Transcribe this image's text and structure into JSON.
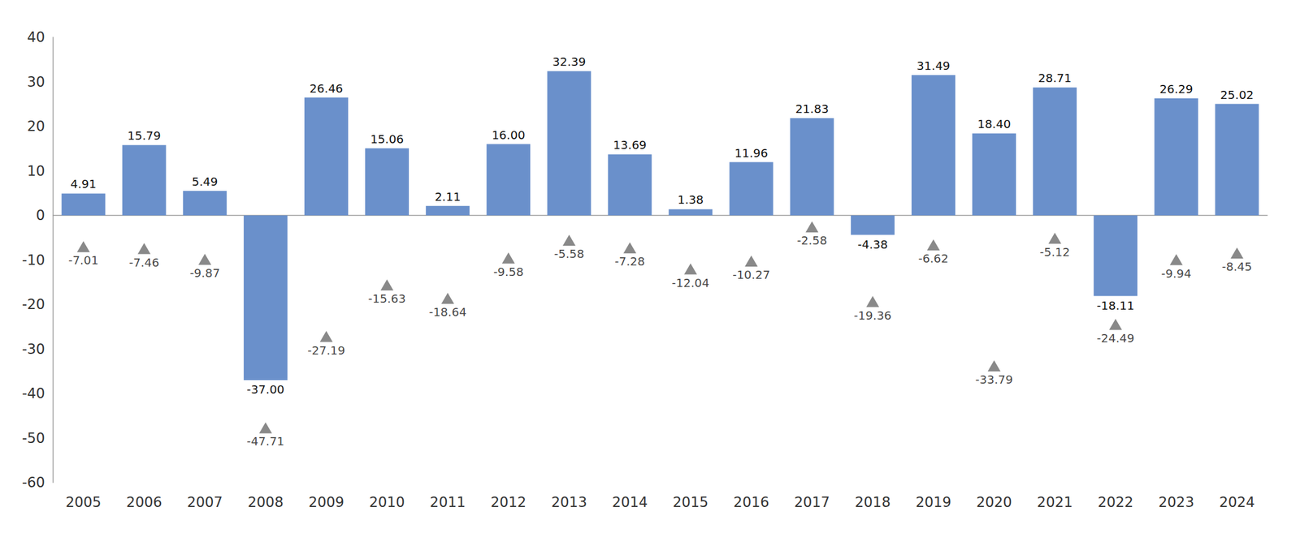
{
  "chart_data": {
    "type": "bar",
    "categories": [
      "2005",
      "2006",
      "2007",
      "2008",
      "2009",
      "2010",
      "2011",
      "2012",
      "2013",
      "2014",
      "2015",
      "2016",
      "2017",
      "2018",
      "2019",
      "2020",
      "2021",
      "2022",
      "2023",
      "2024"
    ],
    "series": [
      {
        "type": "bar",
        "color": "#6a90cb",
        "values": [
          4.91,
          15.79,
          5.49,
          -37.0,
          26.46,
          15.06,
          2.11,
          16.0,
          32.39,
          13.69,
          1.38,
          11.96,
          21.83,
          -4.38,
          31.49,
          18.4,
          28.71,
          -18.11,
          26.29,
          25.02
        ],
        "value_labels": [
          "4.91",
          "15.79",
          "5.49",
          "-37.00",
          "26.46",
          "15.06",
          "2.11",
          "16.00",
          "32.39",
          "13.69",
          "1.38",
          "11.96",
          "21.83",
          "-4.38",
          "31.49",
          "18.40",
          "28.71",
          "-18.11",
          "26.29",
          "25.02"
        ]
      },
      {
        "type": "scatter",
        "marker": "triangle",
        "color": "#6b6b6b",
        "values": [
          -7.01,
          -7.46,
          -9.87,
          -47.71,
          -27.19,
          -15.63,
          -18.64,
          -9.58,
          -5.58,
          -7.28,
          -12.04,
          -10.27,
          -2.58,
          -19.36,
          -6.62,
          -33.79,
          -5.12,
          -24.49,
          -9.94,
          -8.45
        ]
      }
    ],
    "ylim": [
      -60,
      40
    ],
    "yticks": [
      -60,
      -50,
      -40,
      -30,
      -20,
      -10,
      0,
      10,
      20,
      30,
      40
    ],
    "grid": false,
    "data_labels": true
  }
}
